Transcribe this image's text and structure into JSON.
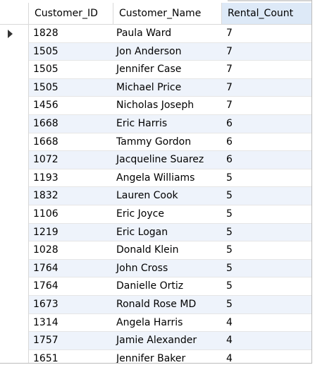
{
  "grid": {
    "columns": [
      "Customer_ID",
      "Customer_Name",
      "Rental_Count"
    ],
    "rows": [
      {
        "id": "1828",
        "name": "Paula Ward",
        "count": "7"
      },
      {
        "id": "1505",
        "name": "Jon Anderson",
        "count": "7"
      },
      {
        "id": "1505",
        "name": "Jennifer Case",
        "count": "7"
      },
      {
        "id": "1505",
        "name": "Michael Price",
        "count": "7"
      },
      {
        "id": "1456",
        "name": "Nicholas Joseph",
        "count": "7"
      },
      {
        "id": "1668",
        "name": "Eric Harris",
        "count": "6"
      },
      {
        "id": "1668",
        "name": "Tammy Gordon",
        "count": "6"
      },
      {
        "id": "1072",
        "name": "Jacqueline Suarez",
        "count": "6"
      },
      {
        "id": "1193",
        "name": "Angela Williams",
        "count": "5"
      },
      {
        "id": "1832",
        "name": "Lauren Cook",
        "count": "5"
      },
      {
        "id": "1106",
        "name": "Eric Joyce",
        "count": "5"
      },
      {
        "id": "1219",
        "name": "Eric Logan",
        "count": "5"
      },
      {
        "id": "1028",
        "name": "Donald Klein",
        "count": "5"
      },
      {
        "id": "1764",
        "name": "John Cross",
        "count": "5"
      },
      {
        "id": "1764",
        "name": "Danielle Ortiz",
        "count": "5"
      },
      {
        "id": "1673",
        "name": "Ronald Rose MD",
        "count": "5"
      },
      {
        "id": "1314",
        "name": "Angela Harris",
        "count": "4"
      },
      {
        "id": "1757",
        "name": "Jamie Alexander",
        "count": "4"
      },
      {
        "id": "1651",
        "name": "Jennifer Baker",
        "count": "4"
      }
    ]
  },
  "icons": {
    "row_pointer": "current-row-arrow-icon"
  }
}
